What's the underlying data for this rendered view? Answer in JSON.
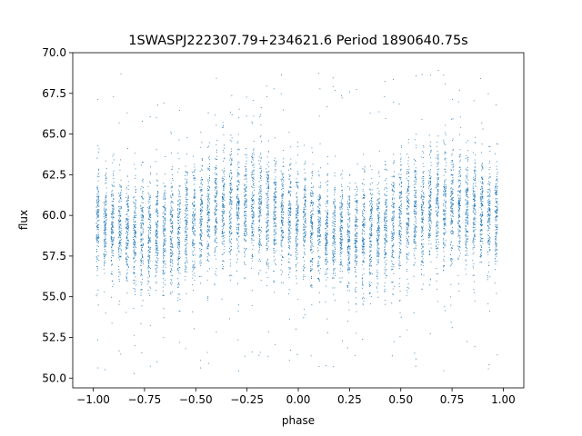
{
  "chart_data": {
    "type": "scatter",
    "title": "1SWASPJ222307.79+234621.6 Period 1890640.75s",
    "xlabel": "phase",
    "ylabel": "flux",
    "xlim": [
      -1.1,
      1.1
    ],
    "ylim": [
      49.4,
      70.0
    ],
    "x_ticks": [
      -1.0,
      -0.75,
      -0.5,
      -0.25,
      0.0,
      0.25,
      0.5,
      0.75,
      1.0
    ],
    "x_tick_labels": [
      "−1.00",
      "−0.75",
      "−0.50",
      "−0.25",
      "0.00",
      "0.25",
      "0.50",
      "0.75",
      "1.00"
    ],
    "y_ticks": [
      50.0,
      52.5,
      55.0,
      57.5,
      60.0,
      62.5,
      65.0,
      67.5,
      70.0
    ],
    "y_tick_labels": [
      "50.0",
      "52.5",
      "55.0",
      "57.5",
      "60.0",
      "62.5",
      "65.0",
      "67.5",
      "70.0"
    ],
    "grid": false,
    "marker_color": "#1f77b4",
    "series": [
      {
        "phase_range": [
          -0.98,
          0.98
        ],
        "mean_flux": 60.0,
        "stripe_spacing_phase": 0.036,
        "band_profile": {
          "phase": [
            -1.0,
            -0.9,
            -0.78,
            -0.65,
            -0.5,
            -0.35,
            -0.25,
            -0.1,
            0.0,
            0.1,
            0.25,
            0.35,
            0.5,
            0.6,
            0.7,
            0.8,
            0.9,
            1.0
          ],
          "center": [
            60.0,
            59.5,
            58.7,
            58.9,
            59.8,
            60.6,
            60.6,
            60.1,
            59.5,
            59.2,
            58.6,
            58.9,
            59.9,
            60.4,
            60.7,
            60.4,
            60.1,
            60.0
          ],
          "half_width": [
            2.6,
            2.6,
            2.8,
            2.9,
            3.0,
            3.2,
            3.2,
            2.9,
            2.7,
            2.7,
            2.8,
            2.9,
            3.0,
            3.1,
            3.2,
            3.0,
            2.8,
            2.6
          ]
        },
        "outlier_flux_range": [
          50.2,
          69.0
        ]
      }
    ]
  }
}
